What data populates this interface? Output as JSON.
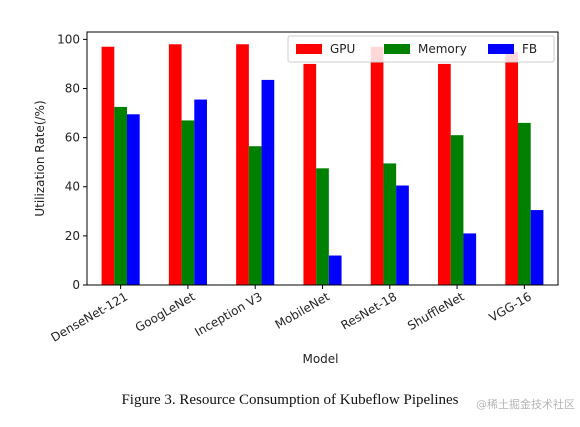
{
  "chart_data": {
    "type": "bar",
    "categories": [
      "DenseNet-121",
      "GoogLeNet",
      "Inception V3",
      "MobileNet",
      "ResNet-18",
      "ShuffleNet",
      "VGG-16"
    ],
    "series": [
      {
        "name": "GPU",
        "color": "#ff0000",
        "values": [
          97,
          98,
          98,
          90,
          97,
          90,
          95
        ]
      },
      {
        "name": "Memory",
        "color": "#008000",
        "values": [
          72.5,
          67,
          56.5,
          47.5,
          49.5,
          61,
          66
        ]
      },
      {
        "name": "FB",
        "color": "#0000ff",
        "values": [
          69.5,
          75.5,
          83.5,
          12,
          40.5,
          21,
          30.5
        ]
      }
    ],
    "xlabel": "Model",
    "ylabel": "Utilization Rate(/%)",
    "ylim": [
      0,
      103
    ],
    "yticks": [
      0,
      20,
      40,
      60,
      80,
      100
    ],
    "grid": false,
    "legend_position": "top-right"
  },
  "caption": "Figure 3.    Resource Consumption of Kubeflow Pipelines",
  "watermark": "@稀土掘金技术社区"
}
